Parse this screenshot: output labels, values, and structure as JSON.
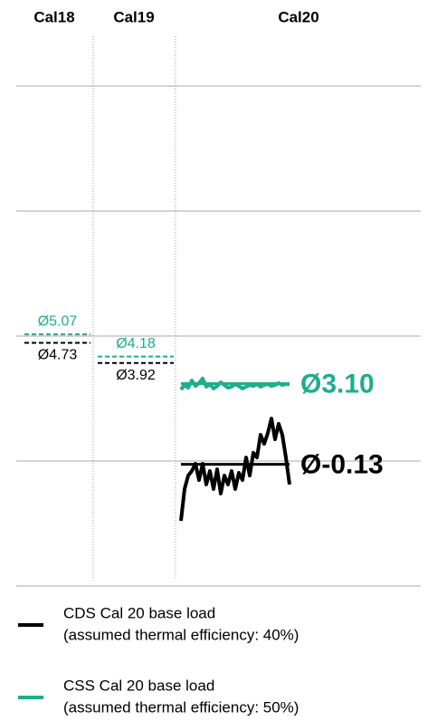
{
  "chart_data": {
    "type": "line",
    "columns": [
      "Cal18",
      "Cal19",
      "Cal20"
    ],
    "ylim": [
      -5,
      15
    ],
    "yticks": [
      -5,
      0,
      5,
      10,
      15
    ],
    "grid": true,
    "series": [
      {
        "name": "CDS Cal 20 base load",
        "description": "(assumed thermal efficiency: 40%)",
        "color": "#000000",
        "values": [
          -2.39,
          -1.12,
          -0.58,
          -0.4,
          -0.11,
          -0.76,
          -0.11,
          -0.94,
          -0.4,
          -1.12,
          -0.33,
          -1.3,
          -0.58,
          -0.94,
          -0.4,
          -1.12,
          -0.47,
          -0.76,
          0.14,
          -0.58,
          0.33,
          0.14,
          1.05,
          0.69,
          1.12,
          1.7,
          0.87,
          1.49,
          1.05,
          0.14,
          -0.94
        ],
        "averages": [
          4.73,
          3.92,
          -0.13
        ],
        "average_labels": [
          "Ø4.73",
          "Ø3.92",
          "Ø-0.13"
        ]
      },
      {
        "name": "CSS Cal 20 base load",
        "description": "(assumed thermal efficiency: 50%)",
        "color": "#20ad8d",
        "values": [
          2.86,
          3.04,
          2.93,
          3.22,
          3.0,
          3.12,
          3.3,
          2.97,
          3.08,
          2.9,
          3.0,
          3.15,
          3.04,
          2.93,
          2.97,
          3.08,
          3.0,
          2.9,
          2.97,
          3.04,
          3.0,
          3.08,
          2.97,
          3.04,
          3.08,
          3.0,
          3.04,
          3.12,
          3.04,
          3.08,
          3.08
        ],
        "averages": [
          5.07,
          4.18,
          3.1
        ],
        "average_labels": [
          "Ø5.07",
          "Ø4.18",
          "Ø3.10"
        ]
      }
    ]
  }
}
